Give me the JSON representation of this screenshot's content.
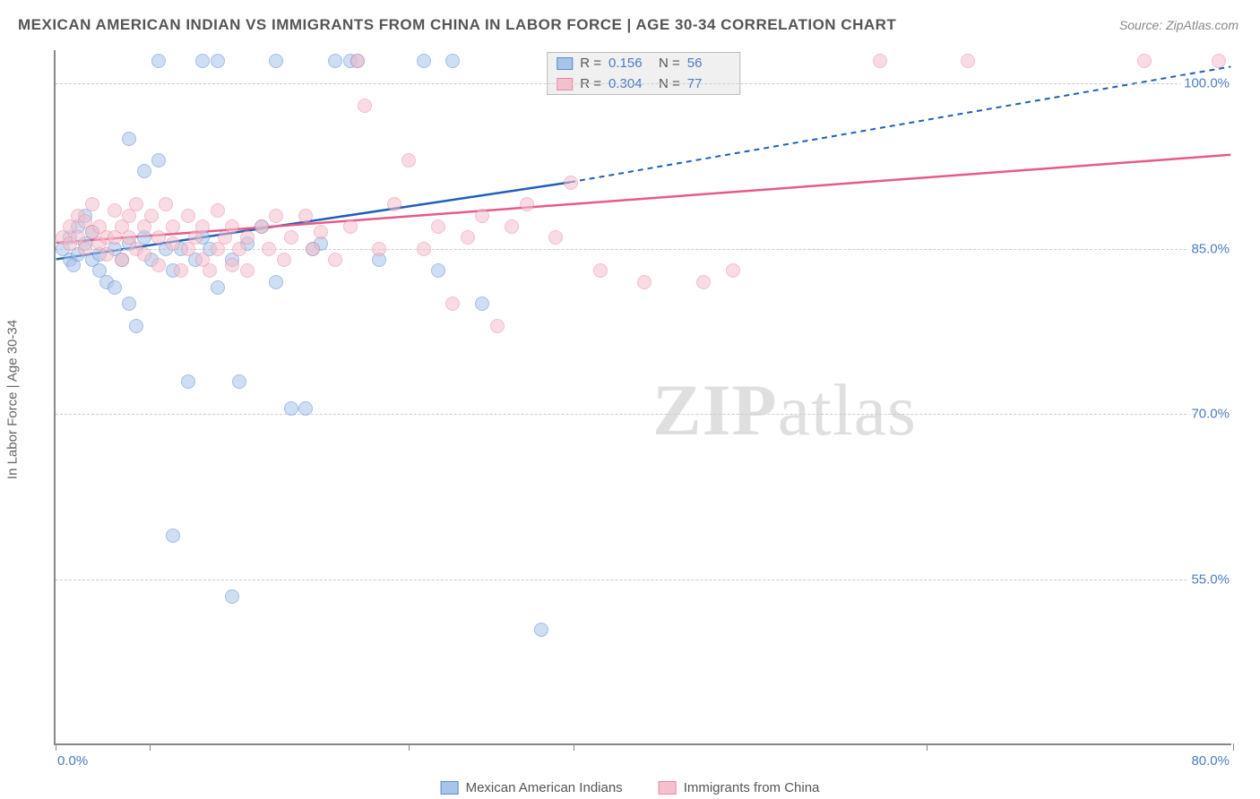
{
  "title": "MEXICAN AMERICAN INDIAN VS IMMIGRANTS FROM CHINA IN LABOR FORCE | AGE 30-34 CORRELATION CHART",
  "source": "Source: ZipAtlas.com",
  "yaxis_label": "In Labor Force | Age 30-34",
  "watermark": {
    "bold": "ZIP",
    "rest": "atlas"
  },
  "chart": {
    "type": "scatter",
    "background_color": "#ffffff",
    "xlim": [
      0,
      80
    ],
    "ylim": [
      40,
      103
    ],
    "xticks_positions_pct": [
      0,
      8,
      30,
      44,
      74,
      100
    ],
    "xtick_label_left": "0.0%",
    "xtick_label_right": "80.0%",
    "ytick_labels": [
      {
        "value": 100,
        "label": "100.0%"
      },
      {
        "value": 85,
        "label": "85.0%"
      },
      {
        "value": 70,
        "label": "70.0%"
      },
      {
        "value": 55,
        "label": "55.0%"
      }
    ],
    "grid_color": "#cccccc",
    "marker_radius": 8,
    "marker_opacity": 0.55,
    "series": [
      {
        "key": "mexican_american_indian",
        "label": "Mexican American Indians",
        "r": "0.156",
        "n": "56",
        "fill": "#a8c4e8",
        "stroke": "#5b8bd0",
        "trend_color": "#1f5fb8",
        "trend_solid": {
          "x1": 0,
          "y1": 84.0,
          "x2": 35,
          "y2": 91.0
        },
        "trend_dash": {
          "x1": 35,
          "y1": 91.0,
          "x2": 80,
          "y2": 101.5
        },
        "points": [
          [
            0.5,
            85
          ],
          [
            1,
            86
          ],
          [
            1,
            84
          ],
          [
            1.2,
            83.5
          ],
          [
            1.5,
            87
          ],
          [
            1.5,
            84.5
          ],
          [
            2,
            85.5
          ],
          [
            2,
            88
          ],
          [
            2.5,
            84
          ],
          [
            2.5,
            86.5
          ],
          [
            3,
            84.5
          ],
          [
            3,
            83
          ],
          [
            3.5,
            82
          ],
          [
            4,
            85
          ],
          [
            4,
            81.5
          ],
          [
            4.5,
            84
          ],
          [
            5,
            95
          ],
          [
            5,
            85.5
          ],
          [
            5,
            80
          ],
          [
            5.5,
            78
          ],
          [
            6,
            92
          ],
          [
            6,
            86
          ],
          [
            6.5,
            84
          ],
          [
            7,
            102
          ],
          [
            7,
            93
          ],
          [
            7.5,
            85
          ],
          [
            8,
            59
          ],
          [
            8,
            83
          ],
          [
            8.5,
            85
          ],
          [
            9,
            73
          ],
          [
            9.5,
            84
          ],
          [
            10,
            102
          ],
          [
            10,
            86
          ],
          [
            10.5,
            85
          ],
          [
            11,
            102
          ],
          [
            11,
            81.5
          ],
          [
            12,
            53.5
          ],
          [
            12,
            84
          ],
          [
            12.5,
            73
          ],
          [
            13,
            85.5
          ],
          [
            14,
            87
          ],
          [
            15,
            102
          ],
          [
            15,
            82
          ],
          [
            16,
            70.5
          ],
          [
            17,
            70.5
          ],
          [
            17.5,
            85
          ],
          [
            18,
            85.5
          ],
          [
            19,
            102
          ],
          [
            20,
            102
          ],
          [
            20.5,
            102
          ],
          [
            22,
            84
          ],
          [
            25,
            102
          ],
          [
            26,
            83
          ],
          [
            27,
            102
          ],
          [
            29,
            80
          ],
          [
            33,
            50.5
          ]
        ]
      },
      {
        "key": "immigrants_from_china",
        "label": "Immigrants from China",
        "r": "0.304",
        "n": "77",
        "fill": "#f5c0cd",
        "stroke": "#e88aa5",
        "trend_color": "#e75a88",
        "trend_solid": {
          "x1": 0,
          "y1": 85.5,
          "x2": 80,
          "y2": 93.5
        },
        "trend_dash": null,
        "points": [
          [
            0.5,
            86
          ],
          [
            1,
            87
          ],
          [
            1,
            85.5
          ],
          [
            1.5,
            88
          ],
          [
            1.5,
            86
          ],
          [
            2,
            87.5
          ],
          [
            2,
            85
          ],
          [
            2.5,
            86.5
          ],
          [
            2.5,
            89
          ],
          [
            3,
            87
          ],
          [
            3,
            85.5
          ],
          [
            3.5,
            86
          ],
          [
            3.5,
            84.5
          ],
          [
            4,
            88.5
          ],
          [
            4,
            86
          ],
          [
            4.5,
            87
          ],
          [
            4.5,
            84
          ],
          [
            5,
            88
          ],
          [
            5,
            86
          ],
          [
            5.5,
            85
          ],
          [
            5.5,
            89
          ],
          [
            6,
            87
          ],
          [
            6,
            84.5
          ],
          [
            6.5,
            88
          ],
          [
            7,
            86
          ],
          [
            7,
            83.5
          ],
          [
            7.5,
            89
          ],
          [
            8,
            85.5
          ],
          [
            8,
            87
          ],
          [
            8.5,
            83
          ],
          [
            9,
            88
          ],
          [
            9,
            85
          ],
          [
            9.5,
            86
          ],
          [
            10,
            87
          ],
          [
            10,
            84
          ],
          [
            10.5,
            83
          ],
          [
            11,
            88.5
          ],
          [
            11,
            85
          ],
          [
            11.5,
            86
          ],
          [
            12,
            87
          ],
          [
            12,
            83.5
          ],
          [
            12.5,
            85
          ],
          [
            13,
            86
          ],
          [
            13,
            83
          ],
          [
            14,
            87
          ],
          [
            14.5,
            85
          ],
          [
            15,
            88
          ],
          [
            15.5,
            84
          ],
          [
            16,
            86
          ],
          [
            17,
            88
          ],
          [
            17.5,
            85
          ],
          [
            18,
            86.5
          ],
          [
            19,
            84
          ],
          [
            20,
            87
          ],
          [
            20.5,
            102
          ],
          [
            21,
            98
          ],
          [
            22,
            85
          ],
          [
            23,
            89
          ],
          [
            24,
            93
          ],
          [
            25,
            85
          ],
          [
            26,
            87
          ],
          [
            27,
            80
          ],
          [
            28,
            86
          ],
          [
            29,
            88
          ],
          [
            30,
            78
          ],
          [
            31,
            87
          ],
          [
            32,
            89
          ],
          [
            34,
            86
          ],
          [
            35,
            91
          ],
          [
            37,
            83
          ],
          [
            40,
            82
          ],
          [
            44,
            82
          ],
          [
            46,
            83
          ],
          [
            56,
            102
          ],
          [
            62,
            102
          ],
          [
            74,
            102
          ],
          [
            79,
            102
          ]
        ]
      }
    ]
  },
  "legend": {
    "r_label": "R =",
    "n_label": "N ="
  }
}
